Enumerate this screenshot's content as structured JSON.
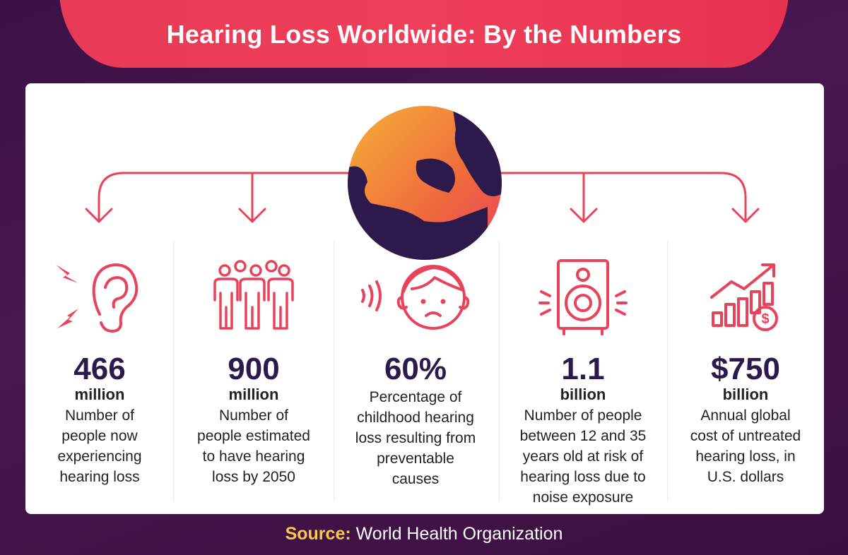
{
  "header": {
    "title": "Hearing Loss Worldwide: By the Numbers"
  },
  "colors": {
    "accent": "#e8435a",
    "navy": "#2d1a4d",
    "orange": "#f3a13a",
    "gold": "#f7c948"
  },
  "stats": [
    {
      "icon": "ear-icon",
      "number": "466",
      "unit": "million",
      "desc_lines": [
        "Number of",
        "people now",
        "experiencing",
        "hearing loss"
      ]
    },
    {
      "icon": "people-group-icon",
      "number": "900",
      "unit": "million",
      "desc_lines": [
        "Number of",
        "people estimated",
        "to have hearing",
        "loss by 2050"
      ]
    },
    {
      "icon": "sad-child-icon",
      "number": "60%",
      "unit": "",
      "desc_lines": [
        "Percentage of",
        "childhood hearing",
        "loss resulting from",
        "preventable",
        "causes"
      ]
    },
    {
      "icon": "speaker-icon",
      "number": "1.1",
      "unit": "billion",
      "desc_lines": [
        "Number of people",
        "between 12 and 35",
        "years old at risk of",
        "hearing loss due to",
        "noise exposure"
      ]
    },
    {
      "icon": "rising-cost-chart-icon",
      "number": "$750",
      "unit": "billion",
      "desc_lines": [
        "Annual global",
        "cost of untreated",
        "hearing loss, in",
        "U.S. dollars"
      ]
    }
  ],
  "source": {
    "label": "Source:",
    "text": "World Health Organization"
  }
}
